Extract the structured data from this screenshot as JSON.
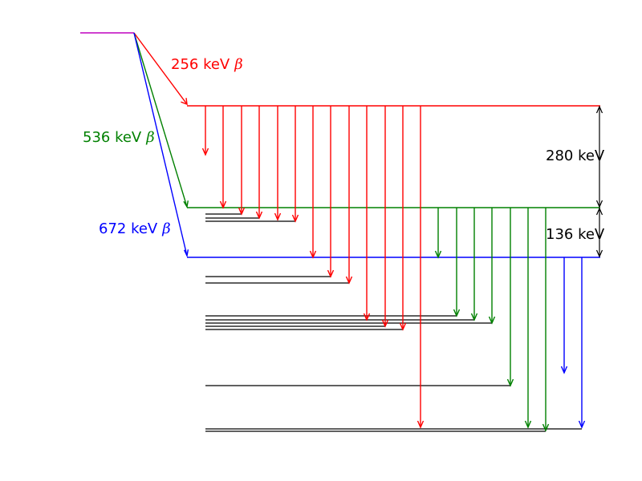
{
  "colors": {
    "parent": "#bf00bf",
    "beta_256": "#ff0000",
    "beta_536": "#008000",
    "beta_672": "#0000ff",
    "bracket": "#000000",
    "daughter_level": "#000000"
  },
  "labels": {
    "beta_256": {
      "energy": "256 keV",
      "symbol": "β"
    },
    "beta_536": {
      "energy": "536 keV",
      "symbol": "β"
    },
    "beta_672": {
      "energy": "672 keV",
      "symbol": "β"
    },
    "gap_upper": "280 keV",
    "gap_lower": "136 keV"
  }
}
